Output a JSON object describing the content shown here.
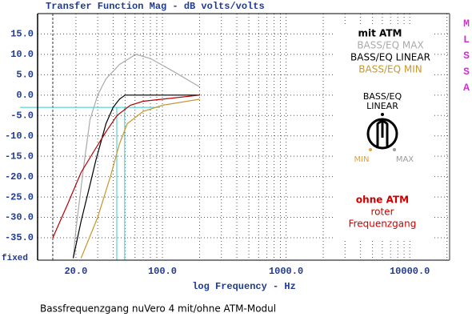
{
  "chart_data": {
    "type": "line",
    "title": "Transfer Function Mag - dB volts/volts",
    "x_label": "log Frequency - Hz",
    "corner_label": "fixed",
    "side_label": "MLSSA",
    "caption": "Bassfrequenzgang nuVero 4 mit/ohne ATM-Modul",
    "log_x": true,
    "grid": true,
    "xlim": [
      9.8,
      21000
    ],
    "ylim": [
      -40.5,
      20
    ],
    "xticks": [
      {
        "value": 20,
        "label": "20.0"
      },
      {
        "value": 100,
        "label": "100.0"
      },
      {
        "value": 1000,
        "label": "1000.0"
      },
      {
        "value": 10000,
        "label": "10000.0"
      }
    ],
    "minor_xticks": [
      20,
      30,
      40,
      50,
      60,
      70,
      80,
      90,
      100,
      200,
      300,
      400,
      500,
      600,
      700,
      800,
      900,
      1000,
      2000,
      3000,
      4000,
      5000,
      6000,
      7000,
      8000,
      9000,
      10000,
      20000
    ],
    "yticks": [
      {
        "value": 15,
        "label": "15.0"
      },
      {
        "value": 10,
        "label": "10.0"
      },
      {
        "value": 5,
        "label": "5.0"
      },
      {
        "value": 0,
        "label": "0.0"
      },
      {
        "value": -5,
        "label": "-5.0"
      },
      {
        "value": -10,
        "label": "-10.0"
      },
      {
        "value": -15,
        "label": "-15.0"
      },
      {
        "value": -20,
        "label": "-20.0"
      },
      {
        "value": -25,
        "label": "-25.0"
      },
      {
        "value": -30,
        "label": "-30.0"
      },
      {
        "value": -35,
        "label": "-35.0"
      }
    ],
    "reference_x": 13,
    "cyan_lines": {
      "y": -3,
      "x": [
        42.8,
        49.6
      ],
      "color": "#33cccc"
    },
    "legend_title": "mit ATM",
    "series": [
      {
        "name": "BASS/EQ MAX",
        "color": "#aaaaaa",
        "x": [
          19,
          20,
          23,
          26,
          30,
          35,
          45,
          61,
          80,
          120,
          201
        ],
        "values": [
          -40,
          -33,
          -18,
          -6,
          0,
          4,
          7.5,
          10,
          9,
          6,
          2
        ]
      },
      {
        "name": "BASS/EQ LINEAR",
        "color": "#000000",
        "x": [
          19,
          22,
          26,
          29,
          35,
          40,
          45,
          50,
          100,
          201
        ],
        "values": [
          -40,
          -31,
          -22,
          -16,
          -7,
          -3,
          -1,
          0,
          0,
          0
        ]
      },
      {
        "name": "BASS/EQ MIN",
        "color": "#c8962d",
        "x": [
          22,
          30,
          38,
          45,
          52,
          70,
          100,
          201
        ],
        "values": [
          -40,
          -30,
          -20,
          -12,
          -7,
          -4,
          -2.5,
          -1
        ]
      },
      {
        "name": "ohne ATM",
        "color": "#b40000",
        "x": [
          13,
          17,
          22,
          29,
          35,
          43,
          55,
          70,
          100,
          201
        ],
        "values": [
          -35,
          -27,
          -19,
          -13,
          -9,
          -5,
          -2.5,
          -1.5,
          -1,
          0
        ]
      }
    ],
    "red_notes": [
      "roter",
      "Frequenzgang"
    ],
    "knob": {
      "labels": [
        "BASS/EQ",
        "LINEAR"
      ],
      "min": "MIN",
      "max": "MAX"
    }
  }
}
